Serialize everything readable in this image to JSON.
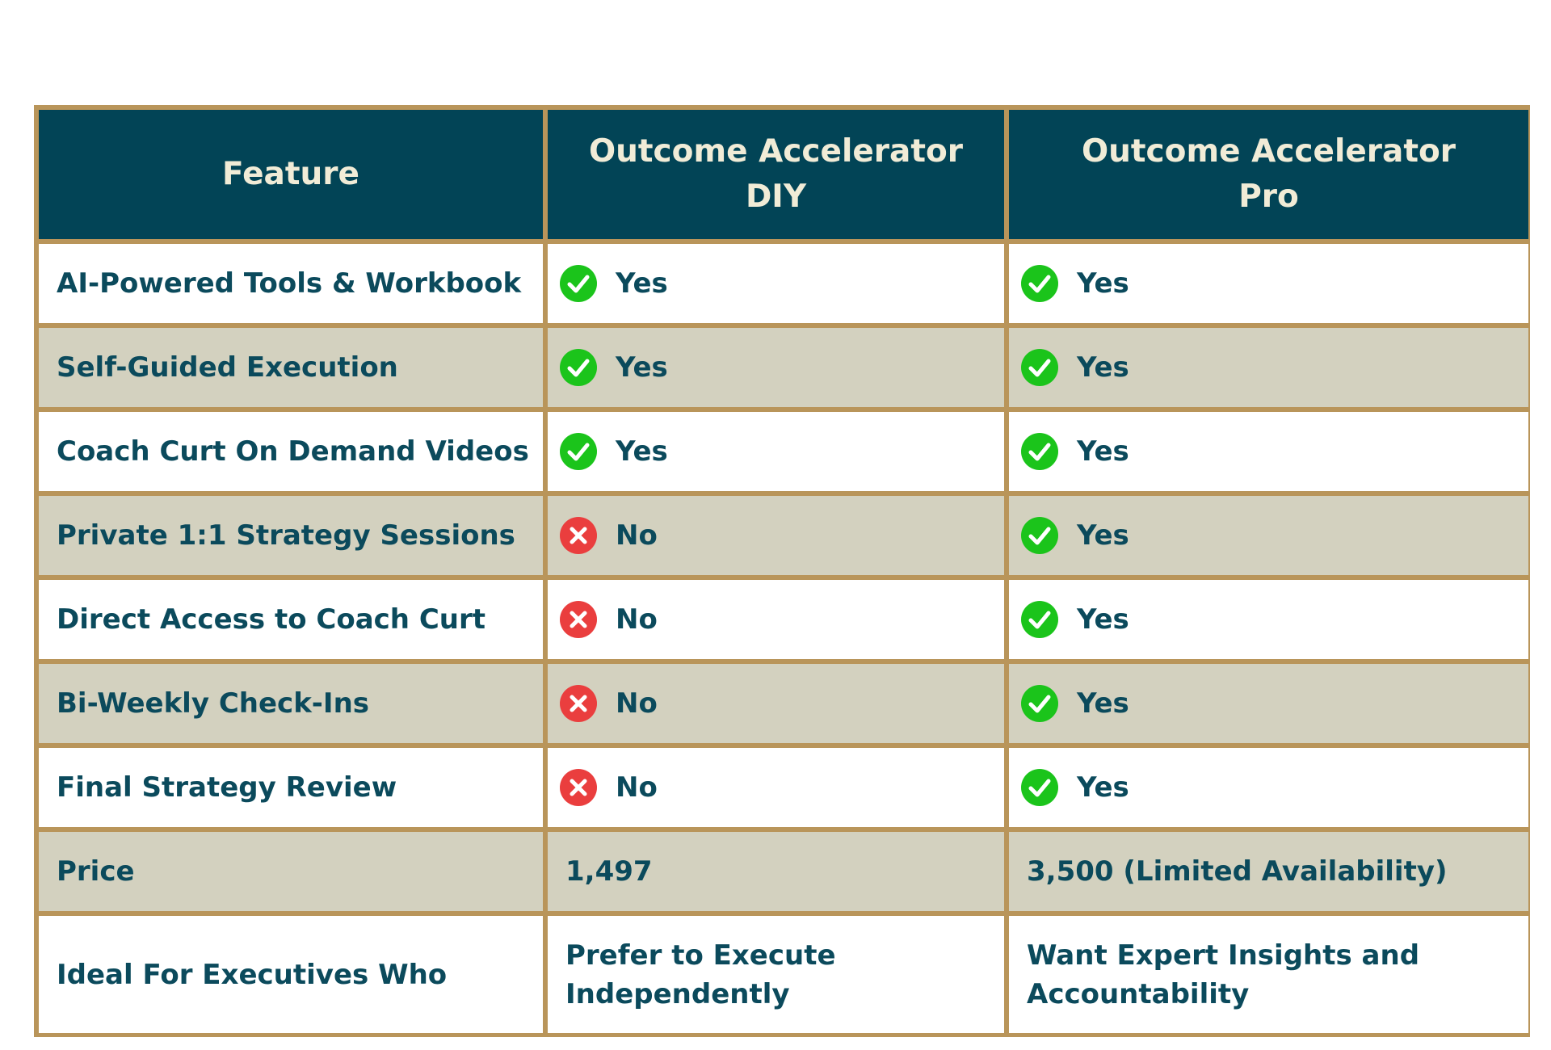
{
  "colors": {
    "header_bg": "#024456",
    "header_text": "#f1ecd7",
    "border": "#b9955a",
    "row_alt": "#d3d1bf",
    "body_text": "#0b4a5c",
    "check_green": "#1bc41b",
    "cross_red": "#ea3e3e"
  },
  "table": {
    "headers": {
      "feature": "Feature",
      "diy_line1": "Outcome Accelerator",
      "diy_line2": "DIY",
      "pro_line1": "Outcome Accelerator",
      "pro_line2": "Pro"
    },
    "rows": [
      {
        "feature": "AI-Powered Tools & Workbook",
        "diy": "Yes",
        "diy_icon": "check-icon",
        "pro": "Yes",
        "pro_icon": "check-icon"
      },
      {
        "feature": "Self-Guided Execution",
        "diy": "Yes",
        "diy_icon": "check-icon",
        "pro": "Yes",
        "pro_icon": "check-icon"
      },
      {
        "feature": "Coach Curt On Demand Videos",
        "diy": "Yes",
        "diy_icon": "check-icon",
        "pro": "Yes",
        "pro_icon": "check-icon"
      },
      {
        "feature": "Private 1:1 Strategy Sessions",
        "diy": "No",
        "diy_icon": "cross-icon",
        "pro": "Yes",
        "pro_icon": "check-icon"
      },
      {
        "feature": "Direct Access to Coach Curt",
        "diy": "No",
        "diy_icon": "cross-icon",
        "pro": "Yes",
        "pro_icon": "check-icon"
      },
      {
        "feature": "Bi-Weekly Check-Ins",
        "diy": "No",
        "diy_icon": "cross-icon",
        "pro": "Yes",
        "pro_icon": "check-icon"
      },
      {
        "feature": "Final Strategy Review",
        "diy": "No",
        "diy_icon": "cross-icon",
        "pro": "Yes",
        "pro_icon": "check-icon"
      }
    ],
    "price": {
      "feature": "Price",
      "diy": "1,497",
      "pro": "3,500 (Limited Availability)"
    },
    "ideal": {
      "feature": "Ideal For Executives Who",
      "diy_line1": "Prefer to Execute",
      "diy_line2": "Independently",
      "pro_line1": "Want Expert Insights and",
      "pro_line2": "Accountability"
    }
  }
}
